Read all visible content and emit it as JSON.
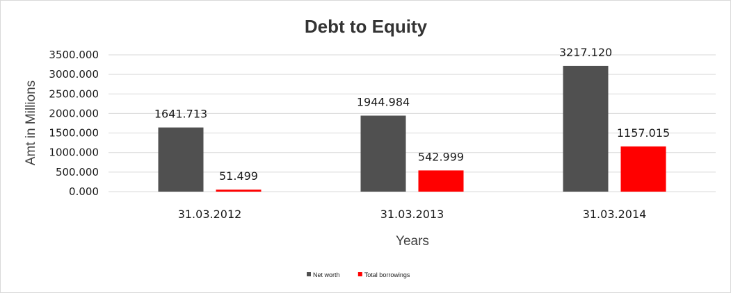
{
  "chart_data": {
    "type": "bar",
    "title": "Debt to Equity",
    "xlabel": "Years",
    "ylabel": "Amt in Millions",
    "categories": [
      "31.03.2012",
      "31.03.2013",
      "31.03.2014"
    ],
    "series": [
      {
        "name": "Net worth",
        "color": "#505050",
        "values": [
          1641.713,
          1944.984,
          3217.12
        ],
        "labels": [
          "1641.713",
          "1944.984",
          "3217.120"
        ]
      },
      {
        "name": "Total borrowings",
        "color": "#ff0000",
        "values": [
          51.499,
          542.999,
          1157.015
        ],
        "labels": [
          "51.499",
          "542.999",
          "1157.015"
        ]
      }
    ],
    "ylim": [
      0,
      3500
    ],
    "yticks": [
      "0.000",
      "500.000",
      "1000.000",
      "1500.000",
      "2000.000",
      "2500.000",
      "3000.000",
      "3500.000"
    ],
    "grid": true,
    "legend_position": "bottom"
  }
}
